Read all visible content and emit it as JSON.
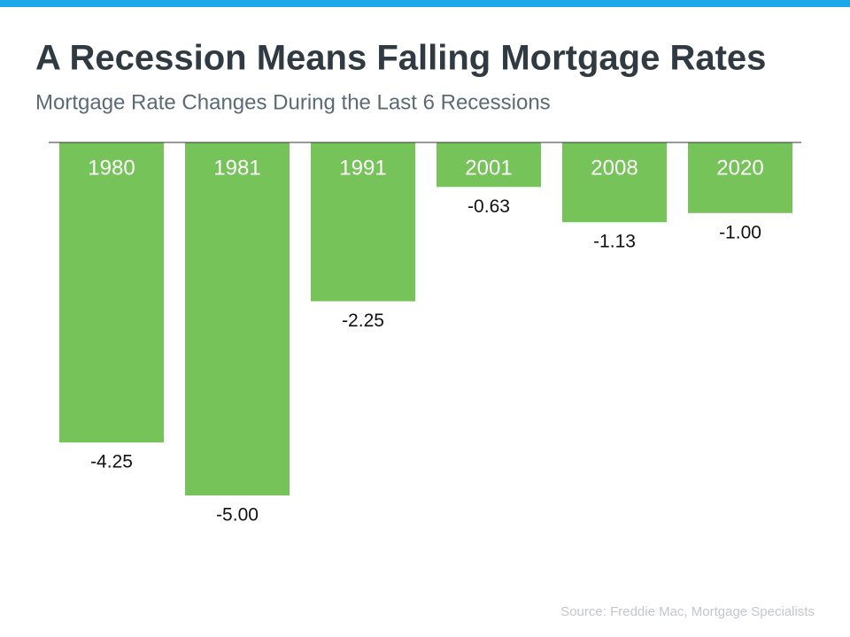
{
  "chart_data": {
    "type": "bar",
    "title": "A Recession Means Falling Mortgage Rates",
    "subtitle": "Mortgage Rate Changes During the Last 6 Recessions",
    "categories": [
      "1980",
      "1981",
      "1991",
      "2001",
      "2008",
      "2020"
    ],
    "values": [
      -4.25,
      -5.0,
      -2.25,
      -0.63,
      -1.13,
      -1.0
    ],
    "value_labels": [
      "-4.25",
      "-5.00",
      "-2.25",
      "-0.63",
      "-1.13",
      "-1.00"
    ],
    "color": "#76c35a",
    "source": "Source: Freddie Mac, Mortgage Specialists"
  }
}
